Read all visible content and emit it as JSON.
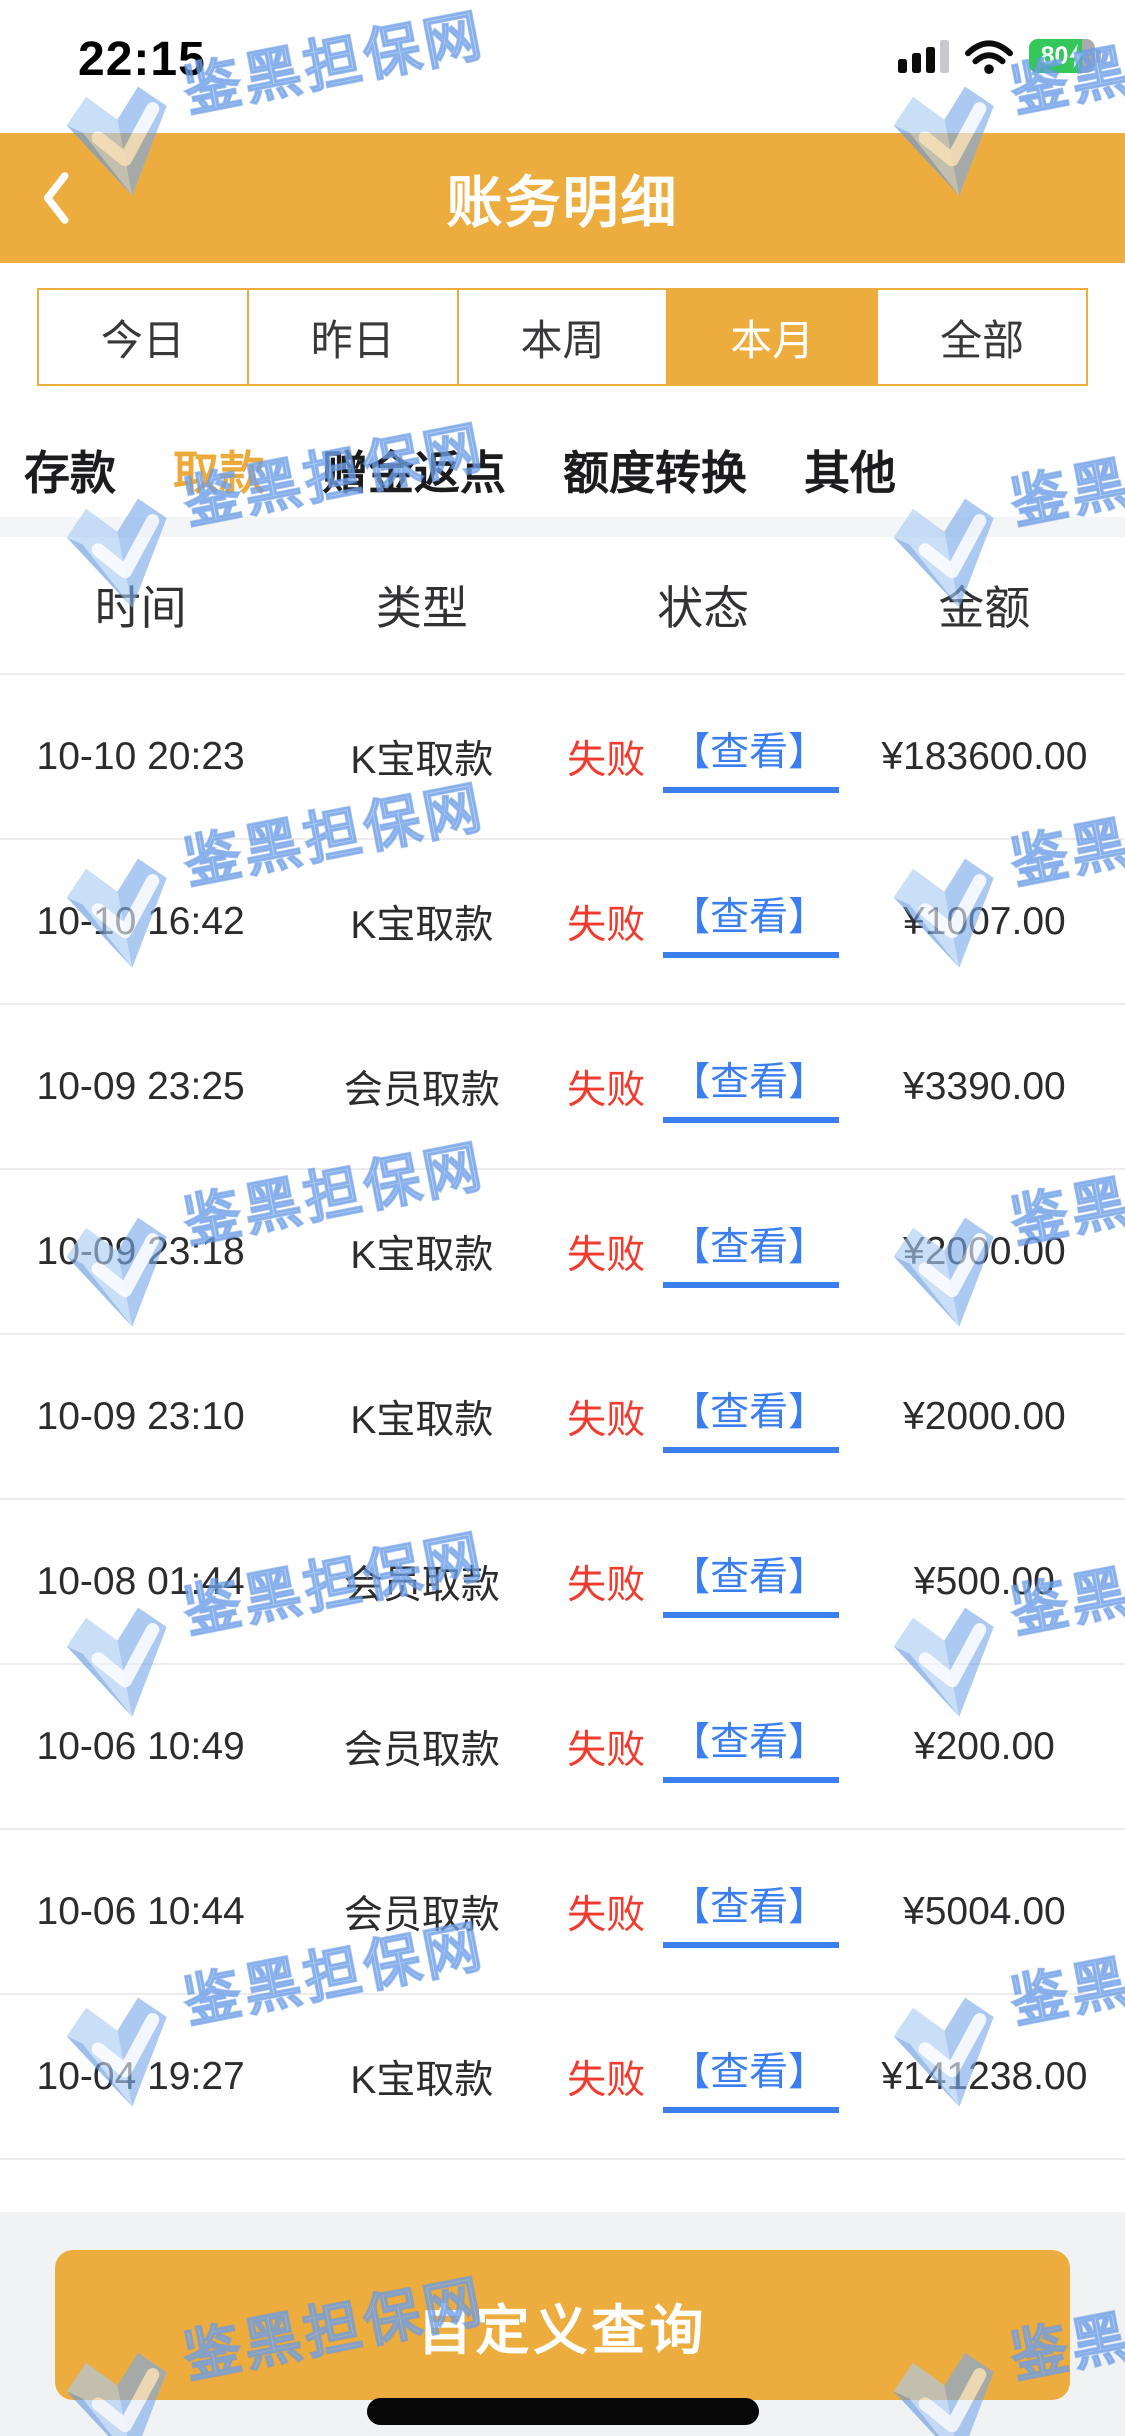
{
  "status_bar": {
    "time": "22:15",
    "battery_percent": "80"
  },
  "navbar": {
    "title": "账务明细"
  },
  "date_tabs": {
    "items": [
      {
        "label": "今日",
        "selected": false
      },
      {
        "label": "昨日",
        "selected": false
      },
      {
        "label": "本周",
        "selected": false
      },
      {
        "label": "本月",
        "selected": true
      },
      {
        "label": "全部",
        "selected": false
      }
    ]
  },
  "type_tabs": {
    "items": [
      {
        "label": "存款",
        "selected": false
      },
      {
        "label": "取款",
        "selected": true
      },
      {
        "label": "赠金返点",
        "selected": false
      },
      {
        "label": "额度转换",
        "selected": false
      },
      {
        "label": "其他",
        "selected": false
      }
    ]
  },
  "table": {
    "headers": [
      "时间",
      "类型",
      "状态",
      "金额"
    ],
    "rows": [
      {
        "time": "10-10 20:23",
        "type": "K宝取款",
        "status": "失败",
        "action": "【查看】",
        "amount": "¥183600.00"
      },
      {
        "time": "10-10 16:42",
        "type": "K宝取款",
        "status": "失败",
        "action": "【查看】",
        "amount": "¥1007.00"
      },
      {
        "time": "10-09 23:25",
        "type": "会员取款",
        "status": "失败",
        "action": "【查看】",
        "amount": "¥3390.00"
      },
      {
        "time": "10-09 23:18",
        "type": "K宝取款",
        "status": "失败",
        "action": "【查看】",
        "amount": "¥2000.00"
      },
      {
        "time": "10-09 23:10",
        "type": "K宝取款",
        "status": "失败",
        "action": "【查看】",
        "amount": "¥2000.00"
      },
      {
        "time": "10-08 01:44",
        "type": "会员取款",
        "status": "失败",
        "action": "【查看】",
        "amount": "¥500.00"
      },
      {
        "time": "10-06 10:49",
        "type": "会员取款",
        "status": "失败",
        "action": "【查看】",
        "amount": "¥200.00"
      },
      {
        "time": "10-06 10:44",
        "type": "会员取款",
        "status": "失败",
        "action": "【查看】",
        "amount": "¥5004.00"
      },
      {
        "time": "10-04 19:27",
        "type": "K宝取款",
        "status": "失败",
        "action": "【查看】",
        "amount": "¥141238.00"
      }
    ]
  },
  "footer": {
    "query_button_label": "自定义查询"
  },
  "watermark": {
    "text": "鉴黑担保网"
  },
  "colors": {
    "accent_orange": "#edac3e",
    "fail_red": "#f23a2d",
    "link_blue": "#3b7ef0",
    "battery_green": "#34c759",
    "watermark_blue": "#86b2ef",
    "separator_gray": "#ececec",
    "footer_gray": "#f1f2f4"
  }
}
